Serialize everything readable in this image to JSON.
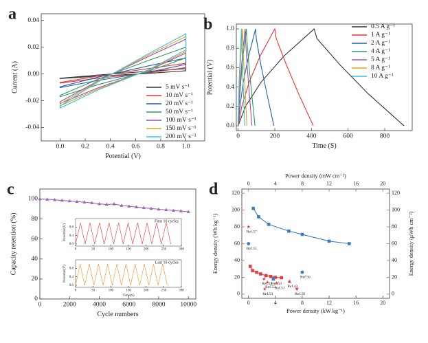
{
  "chart_data": [
    {
      "type": "line",
      "label": "a",
      "xlabel": "Potential (V)",
      "ylabel": "Current (A)",
      "closed": true,
      "legend": "lower right",
      "xlim": [
        -0.15,
        1.15
      ],
      "ylim": [
        -0.05,
        0.045
      ],
      "xticks": [
        {
          "value": 0,
          "label": "0.0"
        },
        0.2,
        0.4,
        0.6,
        0.8,
        {
          "value": 1,
          "label": "1.0"
        }
      ],
      "yticks": [
        -0.04,
        -0.02,
        {
          "value": 0,
          "label": "0.00"
        },
        0.02,
        0.04
      ],
      "series": [
        {
          "name": "5 mV s⁻¹",
          "color": "#333333",
          "x": [
            0,
            0.3,
            0.7,
            1,
            1,
            0.7,
            0.3,
            0
          ],
          "values": [
            -0.0032,
            -0.0008,
            0.002,
            0.004,
            0.0024,
            0.0004,
            -0.0016,
            -0.0034
          ]
        },
        {
          "name": "10 mV s⁻¹",
          "color": "#e8312f",
          "x": [
            0,
            0.3,
            0.7,
            1,
            1,
            0.7,
            0.3,
            0
          ],
          "values": [
            -0.0064,
            -0.0016,
            0.004,
            0.008,
            0.0048,
            0.0008,
            -0.0032,
            -0.0068
          ]
        },
        {
          "name": "20 mV s⁻¹",
          "color": "#1f5fb0",
          "x": [
            0,
            0.3,
            0.7,
            1,
            1,
            0.7,
            0.3,
            0
          ],
          "values": [
            -0.0096,
            -0.0024,
            0.006,
            0.012,
            0.0072,
            0.0012,
            -0.0048,
            -0.0102
          ]
        },
        {
          "name": "50 mV s⁻¹",
          "color": "#2e9a5a",
          "x": [
            0,
            0.3,
            0.7,
            1,
            1,
            0.7,
            0.3,
            0
          ],
          "values": [
            -0.016,
            -0.004,
            0.01,
            0.02,
            0.012,
            0.002,
            -0.008,
            -0.017
          ]
        },
        {
          "name": "100 mV s⁻¹",
          "color": "#9b4fb5",
          "x": [
            0,
            0.3,
            0.7,
            1,
            1,
            0.7,
            0.3,
            0
          ],
          "values": [
            -0.0208,
            -0.0052,
            0.013,
            0.026,
            0.0156,
            0.0026,
            -0.0104,
            -0.0221
          ]
        },
        {
          "name": "150 mV s⁻¹",
          "color": "#e0a21c",
          "x": [
            0,
            0.3,
            0.7,
            1,
            1,
            0.7,
            0.3,
            0
          ],
          "values": [
            -0.0224,
            -0.0056,
            0.014,
            0.028,
            0.0168,
            0.0028,
            -0.0112,
            -0.0238
          ]
        },
        {
          "name": "200 mV s⁻¹",
          "color": "#3cc0d8",
          "x": [
            0,
            0.3,
            0.7,
            1,
            1,
            0.7,
            0.3,
            0
          ],
          "values": [
            -0.024,
            -0.006,
            0.015,
            0.03,
            0.018,
            0.003,
            -0.012,
            -0.0255
          ]
        }
      ]
    },
    {
      "type": "line",
      "label": "b",
      "xlabel": "Time (S)",
      "ylabel": "Potential (V)",
      "legend": "upper right",
      "xlim": [
        -10,
        950
      ],
      "ylim": [
        -0.05,
        1.05
      ],
      "xticks": [
        0,
        200,
        400,
        600,
        800
      ],
      "yticks": [
        {
          "value": 0,
          "label": "0.0"
        },
        0.2,
        0.4,
        0.6,
        0.8,
        {
          "value": 1,
          "label": "1.0"
        }
      ],
      "series": [
        {
          "name": "0.5 A g⁻¹",
          "color": "#333333",
          "x": [
            0,
            40,
            125,
            250,
            415,
            430,
            560,
            710,
            905
          ],
          "values": [
            0,
            0.2,
            0.45,
            0.72,
            1,
            0.9,
            0.62,
            0.33,
            0
          ]
        },
        {
          "name": "1 A g⁻¹",
          "color": "#e8312f",
          "x": [
            0,
            20,
            60,
            120,
            200,
            208,
            265,
            330,
            410
          ],
          "values": [
            0,
            0.2,
            0.45,
            0.72,
            1,
            0.9,
            0.62,
            0.33,
            0
          ]
        },
        {
          "name": "2 A g⁻¹",
          "color": "#1f5fb0",
          "x": [
            0,
            10,
            28,
            57,
            95,
            99,
            125,
            157,
            195
          ],
          "values": [
            0,
            0.2,
            0.45,
            0.72,
            1,
            0.9,
            0.62,
            0.33,
            0
          ]
        },
        {
          "name": "4 A g⁻¹",
          "color": "#2e9a5a",
          "x": [
            0,
            5,
            14,
            27,
            45,
            47,
            59,
            74,
            92
          ],
          "values": [
            0,
            0.2,
            0.45,
            0.72,
            1,
            0.9,
            0.62,
            0.33,
            0
          ]
        },
        {
          "name": "5 A g⁻¹",
          "color": "#9b4fb5",
          "x": [
            0,
            4,
            11,
            23,
            38,
            40,
            49,
            61,
            75
          ],
          "values": [
            0,
            0.2,
            0.45,
            0.72,
            1,
            0.9,
            0.62,
            0.33,
            0
          ]
        },
        {
          "name": "8 A g⁻¹",
          "color": "#e0a21c",
          "x": [
            0,
            2,
            7,
            14,
            24,
            25,
            31,
            39,
            48
          ],
          "values": [
            0,
            0.2,
            0.45,
            0.72,
            1,
            0.9,
            0.62,
            0.33,
            0
          ]
        },
        {
          "name": "10 A g⁻¹",
          "color": "#3cc0d8",
          "x": [
            0,
            2,
            5,
            11,
            18,
            19,
            24,
            29,
            36
          ],
          "values": [
            0,
            0.2,
            0.45,
            0.72,
            1,
            0.9,
            0.62,
            0.33,
            0
          ]
        }
      ]
    },
    {
      "type": "line",
      "label": "c",
      "xlabel": "Cycle numbers",
      "ylabel": "Capacity retention (%)",
      "xlim": [
        0,
        10500
      ],
      "ylim": [
        0,
        110
      ],
      "xticks": [
        0,
        2000,
        4000,
        6000,
        8000,
        10000
      ],
      "yticks": [
        0,
        20,
        40,
        60,
        80,
        100
      ],
      "series": [
        {
          "color": "#a064b4",
          "marker": "triangle",
          "x": [
            0,
            500,
            1000,
            1500,
            2000,
            2500,
            3000,
            3500,
            4000,
            4500,
            5000,
            5500,
            6000,
            6500,
            7000,
            7500,
            8000,
            8500,
            9000,
            9500,
            10000
          ],
          "values": [
            100,
            99.7,
            99.2,
            98.6,
            98,
            97.4,
            96.8,
            96.2,
            95.2,
            94.5,
            95,
            93.5,
            92.8,
            92,
            91.2,
            90.5,
            89.8,
            89.2,
            88.5,
            88,
            87.3
          ]
        }
      ]
    },
    {
      "type": "line",
      "ylabel": "Potential(V)",
      "annotation": "First 10 cycles",
      "annotation_color": "#e8312f",
      "xlim": [
        0,
        300
      ],
      "ylim": [
        -0.1,
        1.2
      ],
      "xticks": [
        0,
        50,
        100,
        150,
        200,
        250,
        300
      ],
      "yticks": [
        {
          "value": 0,
          "label": "0.0"
        },
        0.4,
        0.8
      ],
      "series": [
        {
          "color": "#e8312f",
          "x": [
            0,
            14,
            27,
            41,
            54,
            68,
            81,
            95,
            108,
            122,
            135,
            149,
            162,
            176,
            189,
            203,
            216,
            230,
            243,
            257,
            270
          ],
          "values": [
            0,
            1,
            0,
            1,
            0,
            1,
            0,
            1,
            0,
            1,
            0,
            1,
            0,
            1,
            0,
            1,
            0,
            1,
            0,
            1,
            0
          ]
        }
      ]
    },
    {
      "type": "line",
      "xlabel": "Time(S)",
      "ylabel": "Potential(V)",
      "annotation": "Last 10 cycles",
      "annotation_color": "#e8921c",
      "xlim": [
        0,
        300
      ],
      "ylim": [
        -0.1,
        1.2
      ],
      "xticks": [
        0,
        50,
        100,
        150,
        200,
        250,
        300
      ],
      "yticks": [
        {
          "value": 0,
          "label": "0.0"
        },
        0.4,
        0.8
      ],
      "series": [
        {
          "color": "#e8921c",
          "x": [
            0,
            13,
            26,
            39,
            52,
            65,
            78,
            91,
            104,
            117,
            130,
            143,
            156,
            169,
            182,
            195,
            208,
            221,
            234,
            247,
            260
          ],
          "values": [
            0,
            1,
            0,
            1,
            0,
            1,
            0,
            1,
            0,
            1,
            0,
            1,
            0,
            1,
            0,
            1,
            0,
            1,
            0,
            1,
            0
          ]
        }
      ]
    },
    {
      "type": "scatter",
      "label": "d",
      "xlabel": "Power density (kW kg⁻¹)",
      "ylabel": "Energy density (Wh kg⁻¹)",
      "x2label": "Power density (mW cm⁻²)",
      "y2label": "Energy density (μWh cm⁻²)",
      "y_color": "#e03c3c",
      "y2_color": "#3a7cc4",
      "xlim": [
        -1,
        21
      ],
      "ylim": [
        -5,
        125
      ],
      "x2lim": [
        -1,
        21
      ],
      "y2lim": [
        -5,
        125
      ],
      "xticks": [
        0,
        4,
        8,
        12,
        16,
        20
      ],
      "yticks": [
        0,
        20,
        40,
        60,
        80,
        100,
        120
      ],
      "x2ticks": [
        0,
        4,
        8,
        12,
        16,
        20
      ],
      "y2ticks": [
        0,
        20,
        40,
        60,
        80,
        100,
        120
      ],
      "series": [
        {
          "color": "#e03c3c",
          "marker": "square",
          "x": [
            0.25,
            0.6,
            1.2,
            1.8,
            2.6,
            3.3,
            4,
            4.9
          ],
          "values": [
            33,
            28,
            26,
            24,
            22,
            21,
            20,
            19.5
          ]
        },
        {
          "color": "#3a7cc4",
          "marker": "square",
          "axis": "y2",
          "x": [
            0.7,
            1.5,
            3,
            6,
            8,
            12,
            15
          ],
          "values": [
            102,
            92,
            83,
            75,
            71,
            63,
            60
          ]
        }
      ],
      "references": [
        {
          "label": "Ref.57",
          "x": 0,
          "y": 80,
          "marker": "star",
          "color": "#e03c3c"
        },
        {
          "label": "Ref.55",
          "x": 0,
          "y": 60,
          "marker": "circle",
          "color": "#3a7cc4",
          "axis": "y2"
        },
        {
          "label": "Ref.52",
          "x": 2.3,
          "y": 18,
          "marker": "star",
          "color": "#e03c3c"
        },
        {
          "label": "Ref.53",
          "x": 2.8,
          "y": 14,
          "marker": "star",
          "color": "#e03c3c"
        },
        {
          "label": "Ref.50",
          "x": 3.7,
          "y": 18,
          "marker": "square",
          "color": "#3a7cc4",
          "axis": "y2"
        },
        {
          "label": "Ref.51",
          "x": 4.2,
          "y": 13,
          "marker": "star",
          "color": "#e03c3c"
        },
        {
          "label": "Ref.54",
          "x": 2.4,
          "y": 6,
          "marker": "star",
          "color": "#e03c3c"
        },
        {
          "label": "Ref.43",
          "x": 6.1,
          "y": 15,
          "marker": "triangle",
          "color": "#e03c3c"
        },
        {
          "label": "Ref.58",
          "x": 7.2,
          "y": 6,
          "marker": "down-triangle",
          "color": "#e03c3c"
        },
        {
          "label": "Ref.56",
          "x": 8,
          "y": 26,
          "marker": "circle",
          "color": "#3a7cc4",
          "axis": "y2"
        }
      ]
    }
  ]
}
